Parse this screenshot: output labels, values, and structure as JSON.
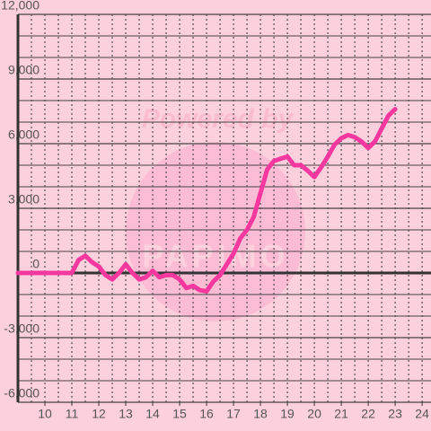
{
  "chart_data": {
    "type": "line",
    "x": [
      9,
      11,
      11.25,
      11.5,
      11.75,
      12,
      12.25,
      12.5,
      12.75,
      13,
      13.25,
      13.5,
      13.75,
      14,
      14.25,
      14.5,
      14.75,
      15,
      15.25,
      15.5,
      15.75,
      16,
      16.25,
      16.5,
      16.75,
      17,
      17.25,
      17.5,
      17.75,
      18,
      18.25,
      18.5,
      18.75,
      19,
      19.25,
      19.5,
      19.75,
      20,
      20.25,
      20.5,
      20.75,
      21,
      21.25,
      21.5,
      21.75,
      22,
      22.25,
      22.5,
      22.75,
      23
    ],
    "series": [
      {
        "color": "#f5389f",
        "values": [
          0,
          0,
          600,
          800,
          500,
          300,
          -100,
          -300,
          0,
          400,
          0,
          -300,
          -200,
          100,
          -200,
          -100,
          -100,
          -300,
          -700,
          -600,
          -800,
          -850,
          -400,
          -100,
          400,
          900,
          1600,
          2000,
          2600,
          3700,
          4800,
          5200,
          5300,
          5400,
          5000,
          5000,
          4750,
          4450,
          4900,
          5400,
          5950,
          6250,
          6400,
          6300,
          6100,
          5800,
          6100,
          6700,
          7300,
          7600
        ]
      }
    ],
    "xlim": [
      9,
      24.33
    ],
    "ylim": [
      -6000,
      12000
    ],
    "xticks": [
      10,
      11,
      12,
      13,
      14,
      15,
      16,
      17,
      18,
      19,
      20,
      21,
      22,
      23,
      24
    ],
    "yticks": [
      {
        "value": -6000,
        "label": "-6,000"
      },
      {
        "value": -3000,
        "label": "-3,000"
      },
      0,
      {
        "value": 3000,
        "label": "3,000"
      },
      {
        "value": 6000,
        "label": "6,000"
      },
      {
        "value": 9000,
        "label": "9,000"
      },
      {
        "value": 12000,
        "label": "12,000"
      }
    ],
    "y_gridlines": [
      -5000,
      -4000,
      -2000,
      -1000,
      1000,
      2000,
      4000,
      5000,
      7000,
      8000,
      10000,
      11000
    ],
    "x_gridlines": [
      9.5,
      10,
      10.5,
      11,
      11.5,
      12,
      12.5,
      13,
      13.5,
      14,
      14.5,
      15,
      15.5,
      16,
      16.5,
      17,
      17.5,
      18,
      18.5,
      19,
      19.5,
      20,
      20.5,
      21,
      21.5,
      22,
      22.5,
      23,
      23.5,
      24
    ],
    "grid": true
  },
  "watermark": {
    "line1": "Powered by",
    "line2": "PAPIMO"
  }
}
